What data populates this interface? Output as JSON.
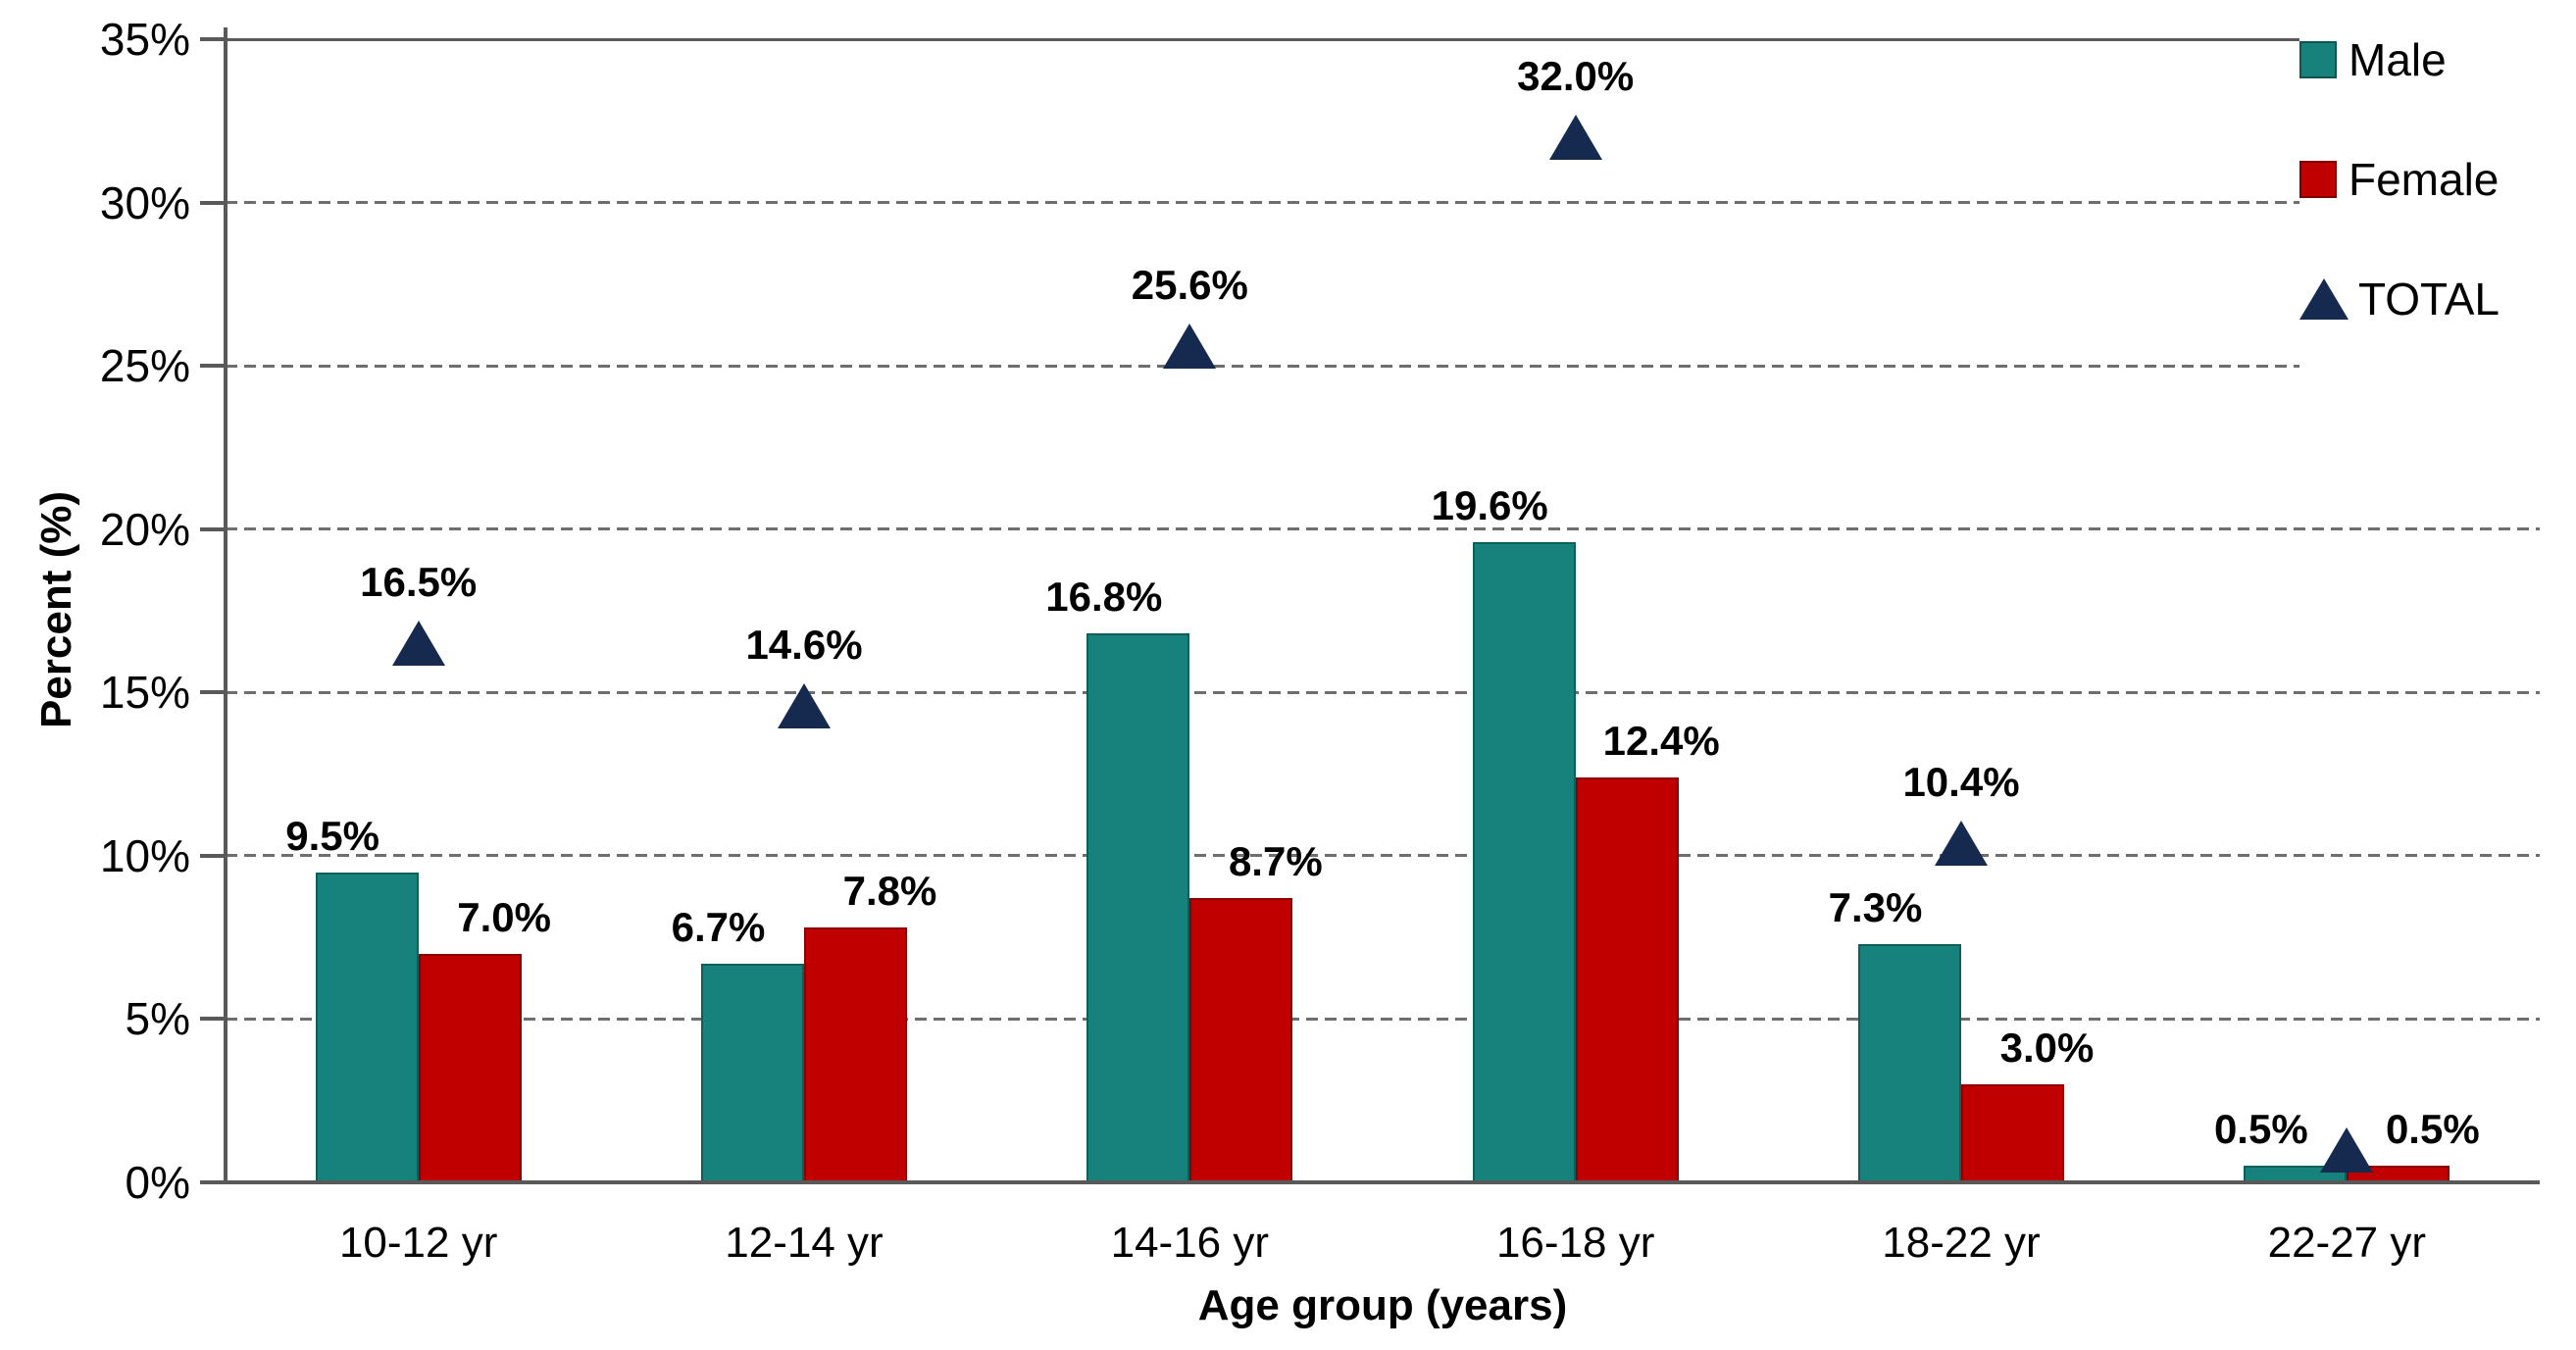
{
  "chart_data": {
    "type": "bar",
    "title": "",
    "xlabel": "Age group (years)",
    "ylabel": "Percent (%)",
    "categories": [
      "10-12 yr",
      "12-14 yr",
      "14-16 yr",
      "16-18 yr",
      "18-22 yr",
      "22-27 yr"
    ],
    "series": [
      {
        "name": "Male",
        "type": "bar",
        "color": "#17817B",
        "border": "#0E5E59",
        "values": [
          9.5,
          6.7,
          16.8,
          19.6,
          7.3,
          0.5
        ],
        "labels": [
          "9.5%",
          "6.7%",
          "16.8%",
          "19.6%",
          "7.3%",
          "0.5%"
        ]
      },
      {
        "name": "Female",
        "type": "bar",
        "color": "#C00000",
        "border": "#8E0000",
        "values": [
          7.0,
          7.8,
          8.7,
          12.4,
          3.0,
          0.5
        ],
        "labels": [
          "7.0%",
          "7.8%",
          "8.7%",
          "12.4%",
          "3.0%",
          "0.5%"
        ]
      },
      {
        "name": "TOTAL",
        "type": "triangle-marker",
        "color": "#16294F",
        "values": [
          16.5,
          14.6,
          25.6,
          32.0,
          10.4,
          1.0
        ],
        "labels": [
          "16.5%",
          "14.6%",
          "25.6%",
          "32.0%",
          "10.4%",
          ""
        ]
      }
    ],
    "y_ticks": [
      "35%",
      "30%",
      "25%",
      "20%",
      "15%",
      "10%",
      "5%",
      "0%"
    ],
    "ylim": [
      0,
      35
    ],
    "grid": "horizontal-dashed",
    "legend_position": "top-right",
    "axis_color": "#595959",
    "gridline_color": "#6e6e6e",
    "label_color": "#000000"
  }
}
